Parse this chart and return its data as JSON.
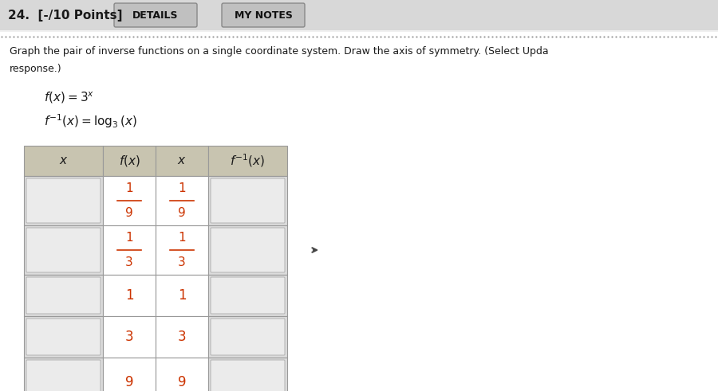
{
  "title_left": "24.  [-/10 Points]",
  "btn1": "DETAILS",
  "btn2": "MY NOTES",
  "bg_color": "#f0f0f0",
  "page_bg": "#ffffff",
  "problem_text_line1": "Graph the pair of inverse functions on a single coordinate system. Draw the axis of symmetry. (Select Upda",
  "problem_text_line2": "response.)",
  "header_bg": "#c8c4b0",
  "row_bg_white": "#ffffff",
  "input_bg": "#dcdcdc",
  "red_color": "#cc3300",
  "black_color": "#1a1a1a",
  "border_color": "#999999",
  "dotted_line_color": "#999999",
  "fx_values_shown": [
    "1/9",
    "1/3",
    "1",
    "3",
    "9"
  ],
  "finv_x_values_shown": [
    "1/9",
    "1/3",
    "1",
    "3",
    "9"
  ]
}
